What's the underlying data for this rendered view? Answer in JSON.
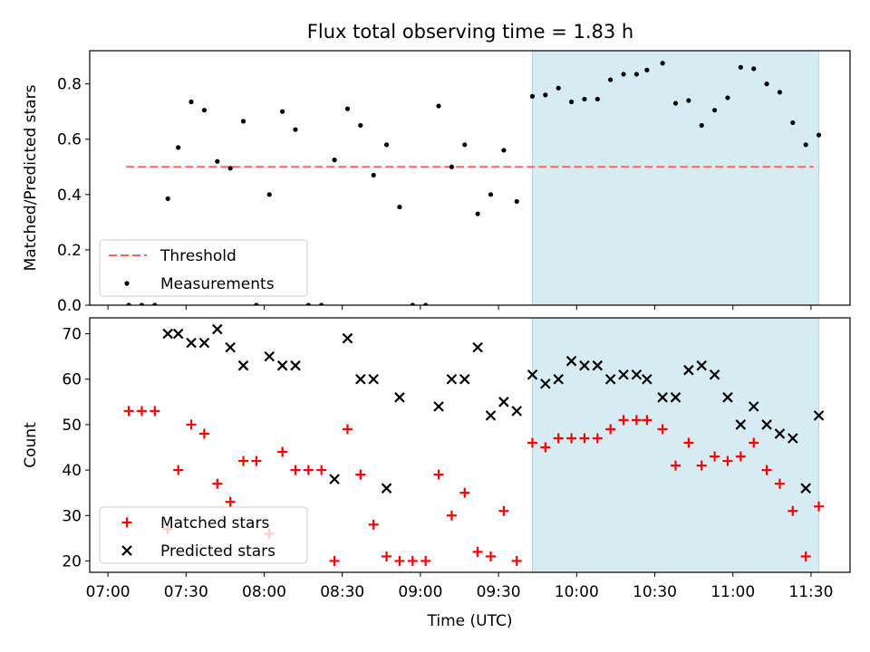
{
  "chart_data": [
    {
      "type": "scatter",
      "title": "Flux total observing time = 1.83 h",
      "ylabel": "Matched/Predicted stars",
      "ylim": [
        0,
        0.92
      ],
      "yticks": [
        0.0,
        0.2,
        0.4,
        0.6,
        0.8
      ],
      "ytick_labels": [
        "0.0",
        "0.2",
        "0.4",
        "0.6",
        "0.8"
      ],
      "xlim": [
        "06:53",
        "11:45"
      ],
      "highlight_span": {
        "x0": "09:43",
        "x1": "11:33",
        "color": "#add8e6"
      },
      "legend_position": "lower left",
      "threshold": {
        "name": "Threshold",
        "y": 0.5,
        "x0": "07:07",
        "x1": "11:31",
        "color": "#ff6464"
      },
      "series": [
        {
          "name": "Measurements",
          "color": "#000000",
          "x": [
            "07:08",
            "07:13",
            "07:18",
            "07:23",
            "07:27",
            "07:32",
            "07:37",
            "07:42",
            "07:47",
            "07:52",
            "07:57",
            "08:02",
            "08:07",
            "08:12",
            "08:17",
            "08:22",
            "08:27",
            "08:32",
            "08:37",
            "08:42",
            "08:47",
            "08:52",
            "08:57",
            "09:02",
            "09:07",
            "09:12",
            "09:17",
            "09:22",
            "09:27",
            "09:32",
            "09:37",
            "09:43",
            "09:48",
            "09:53",
            "09:58",
            "10:03",
            "10:08",
            "10:13",
            "10:18",
            "10:23",
            "10:27",
            "10:33",
            "10:38",
            "10:43",
            "10:48",
            "10:53",
            "10:58",
            "11:03",
            "11:08",
            "11:13",
            "11:18",
            "11:23",
            "11:28",
            "11:33"
          ],
          "y": [
            0.0,
            0.0,
            0.0,
            0.385,
            0.57,
            0.735,
            0.705,
            0.52,
            0.495,
            0.665,
            0.0,
            0.4,
            0.7,
            0.635,
            0.0,
            0.0,
            0.525,
            0.71,
            0.65,
            0.47,
            0.58,
            0.355,
            0.0,
            0.0,
            0.72,
            0.5,
            0.58,
            0.33,
            0.4,
            0.56,
            0.375,
            0.755,
            0.76,
            0.785,
            0.735,
            0.745,
            0.745,
            0.815,
            0.835,
            0.835,
            0.85,
            0.875,
            0.73,
            0.74,
            0.65,
            0.705,
            0.75,
            0.86,
            0.855,
            0.8,
            0.77,
            0.66,
            0.58,
            0.615
          ]
        }
      ]
    },
    {
      "type": "scatter",
      "xlabel": "Time (UTC)",
      "ylabel": "Count",
      "ylim": [
        17.5,
        73.5
      ],
      "yticks": [
        20,
        30,
        40,
        50,
        60,
        70
      ],
      "ytick_labels": [
        "20",
        "30",
        "40",
        "50",
        "60",
        "70"
      ],
      "xlim": [
        "06:53",
        "11:45"
      ],
      "xticks": [
        "07:00",
        "07:30",
        "08:00",
        "08:30",
        "09:00",
        "09:30",
        "10:00",
        "10:30",
        "11:00",
        "11:30"
      ],
      "xtick_labels": [
        "07:00",
        "07:30",
        "08:00",
        "08:30",
        "09:00",
        "09:30",
        "10:00",
        "10:30",
        "11:00",
        "11:30"
      ],
      "highlight_span": {
        "x0": "09:43",
        "x1": "11:33",
        "color": "#add8e6"
      },
      "legend_position": "lower left",
      "series": [
        {
          "name": "Matched stars",
          "marker": "plus",
          "color": "#ff0000",
          "x": [
            "07:08",
            "07:13",
            "07:18",
            "07:23",
            "07:27",
            "07:32",
            "07:37",
            "07:42",
            "07:47",
            "07:52",
            "07:57",
            "08:02",
            "08:07",
            "08:12",
            "08:17",
            "08:22",
            "08:27",
            "08:32",
            "08:37",
            "08:42",
            "08:47",
            "08:52",
            "08:57",
            "09:02",
            "09:07",
            "09:12",
            "09:17",
            "09:22",
            "09:27",
            "09:32",
            "09:37",
            "09:43",
            "09:48",
            "09:53",
            "09:58",
            "10:03",
            "10:08",
            "10:13",
            "10:18",
            "10:23",
            "10:27",
            "10:33",
            "10:38",
            "10:43",
            "10:48",
            "10:53",
            "10:58",
            "11:03",
            "11:08",
            "11:13",
            "11:18",
            "11:23",
            "11:28",
            "11:33"
          ],
          "y": [
            53,
            53,
            53,
            27,
            40,
            50,
            48,
            37,
            33,
            42,
            42,
            26,
            44,
            40,
            40,
            40,
            20,
            49,
            39,
            28,
            21,
            20,
            20,
            20,
            39,
            30,
            35,
            22,
            21,
            31,
            20,
            46,
            45,
            47,
            47,
            47,
            47,
            49,
            51,
            51,
            51,
            49,
            41,
            46,
            41,
            43,
            42,
            43,
            46,
            40,
            37,
            31,
            21,
            32
          ]
        },
        {
          "name": "Predicted stars",
          "marker": "x",
          "color": "#000000",
          "x": [
            "07:23",
            "07:27",
            "07:32",
            "07:37",
            "07:42",
            "07:47",
            "07:52",
            "08:02",
            "08:07",
            "08:12",
            "08:27",
            "08:32",
            "08:37",
            "08:42",
            "08:47",
            "08:52",
            "09:07",
            "09:12",
            "09:17",
            "09:22",
            "09:27",
            "09:32",
            "09:37",
            "09:43",
            "09:48",
            "09:53",
            "09:58",
            "10:03",
            "10:08",
            "10:13",
            "10:18",
            "10:23",
            "10:27",
            "10:33",
            "10:38",
            "10:43",
            "10:48",
            "10:53",
            "10:58",
            "11:03",
            "11:08",
            "11:13",
            "11:18",
            "11:23",
            "11:28",
            "11:33"
          ],
          "y": [
            70,
            70,
            68,
            68,
            71,
            67,
            63,
            65,
            63,
            63,
            38,
            69,
            60,
            60,
            36,
            56,
            54,
            60,
            60,
            67,
            52,
            55,
            53,
            61,
            59,
            60,
            64,
            63,
            63,
            60,
            61,
            61,
            60,
            56,
            56,
            62,
            63,
            61,
            56,
            50,
            54,
            50,
            48,
            47,
            36,
            52
          ]
        }
      ]
    }
  ]
}
